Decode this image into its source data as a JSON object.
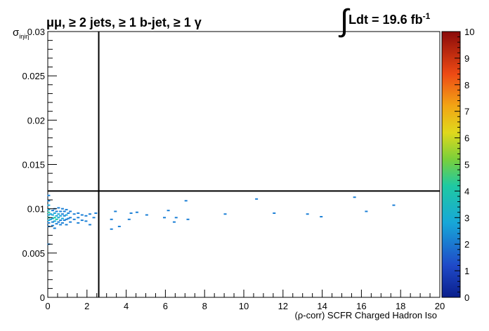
{
  "title_prefix": "μμ, ",
  "title_rest": "≥ 2 jets, ≥ 1 b-jet, ≥ 1 γ",
  "lumi": {
    "label": "Ldt = 19.6 fb",
    "exponent": "-1"
  },
  "chart_data": {
    "type": "heatmap",
    "xlabel": "(ρ-corr) SCFR Charged Hadron Iso",
    "ylabel": "σ",
    "ylabel_sub": "iηiη",
    "xlim": [
      0,
      20
    ],
    "ylim": [
      0,
      0.03
    ],
    "x_ticks": [
      0,
      2,
      4,
      6,
      8,
      10,
      12,
      14,
      16,
      18,
      20
    ],
    "y_ticks": [
      0,
      0.005,
      0.01,
      0.015,
      0.02,
      0.025,
      0.03
    ],
    "y_tick_labels": [
      "0",
      "0.005",
      "0.01",
      "0.015",
      "0.02",
      "0.025",
      "0.03"
    ],
    "colorbar": {
      "min": 0,
      "max": 10,
      "ticks": [
        0,
        1,
        2,
        3,
        4,
        5,
        6,
        7,
        8,
        9,
        10
      ]
    },
    "cut_lines": {
      "vertical_x": 2.6,
      "horizontal_y": 0.012
    },
    "points": [
      [
        0.05,
        0.0115,
        1
      ],
      [
        0.05,
        0.0109,
        1
      ],
      [
        0.05,
        0.0104,
        2
      ],
      [
        0.05,
        0.0099,
        2
      ],
      [
        0.05,
        0.0096,
        3
      ],
      [
        0.05,
        0.0093,
        2
      ],
      [
        0.05,
        0.009,
        3
      ],
      [
        0.05,
        0.0087,
        2
      ],
      [
        0.05,
        0.0084,
        1
      ],
      [
        0.05,
        0.008,
        1
      ],
      [
        0.05,
        0.006,
        1
      ],
      [
        0.15,
        0.0094,
        2
      ],
      [
        0.15,
        0.0088,
        2
      ],
      [
        0.25,
        0.0098,
        1
      ],
      [
        0.25,
        0.0093,
        2
      ],
      [
        0.25,
        0.0089,
        2
      ],
      [
        0.25,
        0.0085,
        1
      ],
      [
        0.25,
        0.0081,
        1
      ],
      [
        0.35,
        0.01,
        1
      ],
      [
        0.35,
        0.0095,
        2
      ],
      [
        0.35,
        0.009,
        3
      ],
      [
        0.35,
        0.0086,
        2
      ],
      [
        0.35,
        0.0078,
        1
      ],
      [
        0.45,
        0.0097,
        1
      ],
      [
        0.45,
        0.0092,
        2
      ],
      [
        0.45,
        0.0088,
        3
      ],
      [
        0.45,
        0.0083,
        1
      ],
      [
        0.55,
        0.0101,
        1
      ],
      [
        0.55,
        0.0094,
        2
      ],
      [
        0.55,
        0.009,
        2
      ],
      [
        0.55,
        0.0085,
        1
      ],
      [
        0.65,
        0.0097,
        1
      ],
      [
        0.65,
        0.0092,
        2
      ],
      [
        0.65,
        0.0087,
        1
      ],
      [
        0.65,
        0.0082,
        1
      ],
      [
        0.75,
        0.01,
        1
      ],
      [
        0.75,
        0.0094,
        1
      ],
      [
        0.75,
        0.0089,
        2
      ],
      [
        0.75,
        0.0084,
        1
      ],
      [
        0.85,
        0.0097,
        1
      ],
      [
        0.85,
        0.0092,
        1
      ],
      [
        0.85,
        0.0087,
        1
      ],
      [
        0.95,
        0.0099,
        1
      ],
      [
        0.95,
        0.0093,
        2
      ],
      [
        0.95,
        0.0088,
        1
      ],
      [
        0.95,
        0.0082,
        1
      ],
      [
        1.05,
        0.0095,
        1
      ],
      [
        1.05,
        0.0089,
        1
      ],
      [
        1.15,
        0.0097,
        1
      ],
      [
        1.15,
        0.009,
        1
      ],
      [
        1.15,
        0.0085,
        1
      ],
      [
        1.35,
        0.0094,
        1
      ],
      [
        1.35,
        0.0088,
        1
      ],
      [
        1.55,
        0.0095,
        1
      ],
      [
        1.55,
        0.009,
        1
      ],
      [
        1.55,
        0.0084,
        1
      ],
      [
        1.75,
        0.0093,
        1
      ],
      [
        1.75,
        0.0087,
        1
      ],
      [
        1.95,
        0.0092,
        1
      ],
      [
        1.95,
        0.0086,
        1
      ],
      [
        2.15,
        0.0094,
        1
      ],
      [
        2.15,
        0.0082,
        1
      ],
      [
        2.35,
        0.009,
        1
      ],
      [
        2.45,
        0.0095,
        1
      ],
      [
        3.25,
        0.0088,
        1
      ],
      [
        3.25,
        0.0077,
        1
      ],
      [
        3.45,
        0.0097,
        1
      ],
      [
        3.65,
        0.008,
        1
      ],
      [
        4.15,
        0.0088,
        1
      ],
      [
        4.25,
        0.0095,
        1
      ],
      [
        4.55,
        0.0096,
        1
      ],
      [
        5.05,
        0.0093,
        1
      ],
      [
        5.95,
        0.009,
        1
      ],
      [
        6.15,
        0.0098,
        1
      ],
      [
        6.45,
        0.0085,
        1
      ],
      [
        6.55,
        0.009,
        1
      ],
      [
        7.05,
        0.0109,
        1
      ],
      [
        7.15,
        0.0088,
        1
      ],
      [
        9.05,
        0.0094,
        1
      ],
      [
        10.65,
        0.0111,
        1
      ],
      [
        11.55,
        0.0095,
        1
      ],
      [
        13.25,
        0.0094,
        1
      ],
      [
        13.95,
        0.0091,
        1
      ],
      [
        15.65,
        0.0113,
        1
      ],
      [
        16.25,
        0.0097,
        1
      ],
      [
        17.65,
        0.0104,
        1
      ]
    ]
  }
}
